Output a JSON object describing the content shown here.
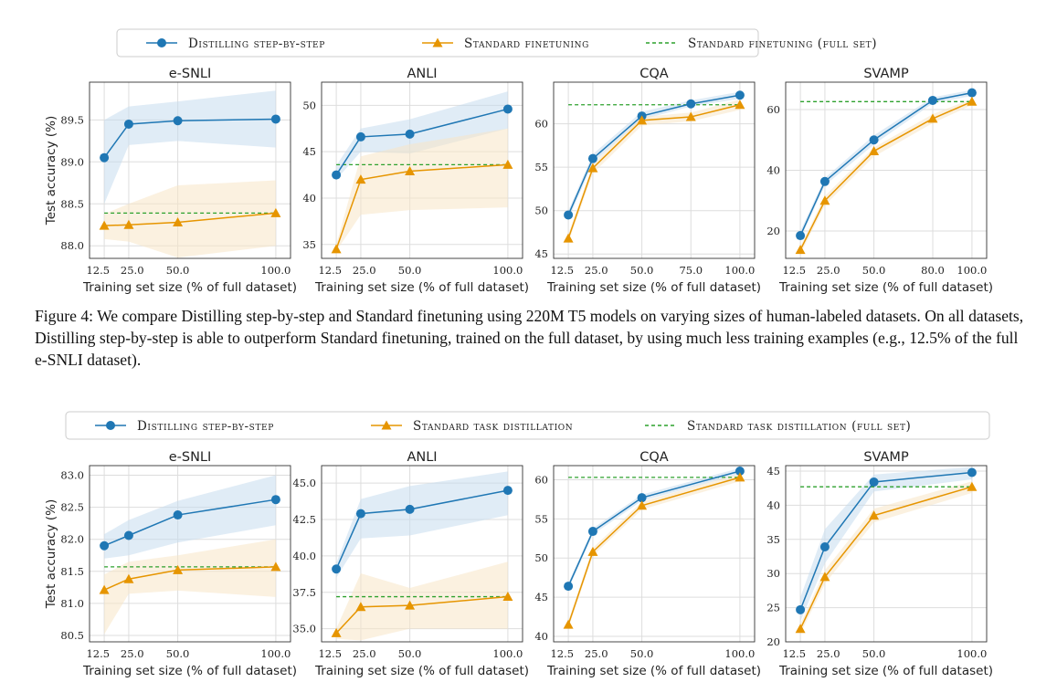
{
  "colors": {
    "distill": "#1f77b4",
    "distill_band": "#c6dcef",
    "standard": "#e69500",
    "standard_band": "#f8e5c6",
    "full_set": "#2ca02c",
    "grid": "#dddddd"
  },
  "caption": "Figure 4: We compare Distilling step-by-step and Standard finetuning using 220M T5 models on varying sizes of human-labeled datasets. On all datasets, Distilling step-by-step is able to outperform Standard finetuning, trained on the full dataset, by using much less training examples (e.g., 12.5% of the full e-SNLI dataset).",
  "chart_data": [
    {
      "type": "line",
      "legend": [
        "Distilling step-by-step",
        "Standard finetuning",
        "Standard finetuning (full set)"
      ],
      "legend_position": "top-center",
      "grid": true,
      "panels": [
        {
          "title": "e-SNLI",
          "ylabel": "Test accuracy (%)",
          "xlabel": "Training set size (% of full dataset)",
          "xlim": [
            5,
            107.5
          ],
          "ylim": [
            87.85,
            89.95
          ],
          "xticks": [
            12.5,
            25.0,
            50.0,
            100.0
          ],
          "xtick_labels": [
            "12.5",
            "25.0",
            "50.0",
            "100.0"
          ],
          "yticks": [
            88.0,
            88.5,
            89.0,
            89.5
          ],
          "ytick_labels": [
            "88.0",
            "88.5",
            "89.0",
            "89.5"
          ],
          "series": [
            {
              "name": "Distilling step-by-step",
              "x": [
                12.5,
                25,
                50,
                100
              ],
              "y": [
                89.05,
                89.45,
                89.49,
                89.51
              ],
              "lower": [
                88.5,
                89.2,
                89.25,
                89.17
              ],
              "upper": [
                89.5,
                89.66,
                89.72,
                89.85
              ]
            },
            {
              "name": "Standard finetuning",
              "x": [
                12.5,
                25,
                50,
                100
              ],
              "y": [
                88.24,
                88.25,
                88.28,
                88.39
              ],
              "lower": [
                88.08,
                88.05,
                87.86,
                88.0
              ],
              "upper": [
                88.38,
                88.5,
                88.72,
                88.78
              ]
            }
          ],
          "full_set": 88.39
        },
        {
          "title": "ANLI",
          "ylabel": "",
          "xlabel": "Training set size (% of full dataset)",
          "xlim": [
            5,
            107.5
          ],
          "ylim": [
            33.5,
            52.5
          ],
          "xticks": [
            12.5,
            25.0,
            50.0,
            100.0
          ],
          "xtick_labels": [
            "12.5",
            "25.0",
            "50.0",
            "100.0"
          ],
          "yticks": [
            35,
            40,
            45,
            50
          ],
          "ytick_labels": [
            "35",
            "40",
            "45",
            "50"
          ],
          "series": [
            {
              "name": "Distilling step-by-step",
              "x": [
                12.5,
                25,
                50,
                100
              ],
              "y": [
                42.5,
                46.6,
                46.9,
                49.6
              ],
              "lower": [
                42.0,
                45.0,
                44.8,
                47.5
              ],
              "upper": [
                43.5,
                47.5,
                48.5,
                51.5
              ]
            },
            {
              "name": "Standard finetuning",
              "x": [
                12.5,
                25,
                50,
                100
              ],
              "y": [
                34.5,
                42.0,
                42.9,
                43.6
              ],
              "lower": [
                34.3,
                38.2,
                38.7,
                39.0
              ],
              "upper": [
                35.0,
                44.5,
                45.8,
                47.5
              ]
            }
          ],
          "full_set": 43.6
        },
        {
          "title": "CQA",
          "ylabel": "",
          "xlabel": "Training set size (% of full dataset)",
          "xlim": [
            5,
            107.5
          ],
          "ylim": [
            44.5,
            64.8
          ],
          "xticks": [
            12.5,
            25.0,
            50.0,
            75.0,
            100.0
          ],
          "xtick_labels": [
            "12.5",
            "25.0",
            "50.0",
            "75.0",
            "100.0"
          ],
          "yticks": [
            45,
            50,
            55,
            60
          ],
          "ytick_labels": [
            "45",
            "50",
            "55",
            "60"
          ],
          "series": [
            {
              "name": "Distilling step-by-step",
              "x": [
                12.5,
                25,
                50,
                75,
                100
              ],
              "y": [
                49.5,
                56.0,
                60.9,
                62.3,
                63.3
              ],
              "lower": [
                49.0,
                55.5,
                60.5,
                62.0,
                62.9
              ],
              "upper": [
                50.0,
                56.5,
                61.4,
                62.7,
                63.7
              ]
            },
            {
              "name": "Standard finetuning",
              "x": [
                12.5,
                25,
                50,
                75,
                100
              ],
              "y": [
                46.8,
                54.9,
                60.4,
                60.8,
                62.2
              ],
              "lower": [
                46.3,
                54.3,
                59.8,
                60.3,
                61.6
              ],
              "upper": [
                47.3,
                55.4,
                60.8,
                61.3,
                62.8
              ]
            }
          ],
          "full_set": 62.2
        },
        {
          "title": "SVAMP",
          "ylabel": "",
          "xlabel": "Training set size (% of full dataset)",
          "xlim": [
            5,
            107.5
          ],
          "ylim": [
            11,
            69
          ],
          "xticks": [
            12.5,
            25.0,
            50.0,
            80.0,
            100.0
          ],
          "xtick_labels": [
            "12.5",
            "25.0",
            "50.0",
            "80.0",
            "100.0"
          ],
          "yticks": [
            20,
            40,
            60
          ],
          "ytick_labels": [
            "20",
            "40",
            "60"
          ],
          "series": [
            {
              "name": "Distilling step-by-step",
              "x": [
                12.5,
                25,
                50,
                80,
                100
              ],
              "y": [
                18.5,
                36.3,
                50.0,
                63.0,
                65.5
              ],
              "lower": [
                17.5,
                35.0,
                48.5,
                62.0,
                64.5
              ],
              "upper": [
                20.0,
                37.5,
                51.5,
                64.0,
                66.5
              ]
            },
            {
              "name": "Standard finetuning",
              "x": [
                12.5,
                25,
                50,
                80,
                100
              ],
              "y": [
                13.8,
                30.0,
                46.3,
                57.0,
                62.6
              ],
              "lower": [
                12.5,
                28.5,
                44.5,
                55.5,
                61.5
              ],
              "upper": [
                15.0,
                31.5,
                47.5,
                58.5,
                63.5
              ]
            }
          ],
          "full_set": 62.6
        }
      ]
    },
    {
      "type": "line",
      "legend": [
        "Distilling step-by-step",
        "Standard task distillation",
        "Standard task distillation (full set)"
      ],
      "legend_position": "top-center",
      "grid": true,
      "panels": [
        {
          "title": "e-SNLI",
          "ylabel": "Test accuracy (%)",
          "xlabel": "Training set size (% of full dataset)",
          "xlim": [
            5,
            107.5
          ],
          "ylim": [
            80.4,
            83.15
          ],
          "xticks": [
            12.5,
            25.0,
            50.0,
            100.0
          ],
          "xtick_labels": [
            "12.5",
            "25.0",
            "50.0",
            "100.0"
          ],
          "yticks": [
            80.5,
            81.0,
            81.5,
            82.0,
            82.5,
            83.0
          ],
          "ytick_labels": [
            "80.5",
            "81.0",
            "81.5",
            "82.0",
            "82.5",
            "83.0"
          ],
          "series": [
            {
              "name": "Distilling step-by-step",
              "x": [
                12.5,
                25,
                50,
                100
              ],
              "y": [
                81.9,
                82.06,
                82.38,
                82.62
              ],
              "lower": [
                81.7,
                81.75,
                81.95,
                82.22
              ],
              "upper": [
                82.08,
                82.3,
                82.6,
                83.0
              ]
            },
            {
              "name": "Standard task distillation",
              "x": [
                12.5,
                25,
                50,
                100
              ],
              "y": [
                81.21,
                81.38,
                81.52,
                81.57
              ],
              "lower": [
                80.52,
                81.15,
                81.2,
                81.1
              ],
              "upper": [
                81.45,
                81.65,
                81.75,
                82.0
              ]
            }
          ],
          "full_set": 81.57
        },
        {
          "title": "ANLI",
          "ylabel": "",
          "xlabel": "Training set size (% of full dataset)",
          "xlim": [
            5,
            107.5
          ],
          "ylim": [
            34.1,
            46.2
          ],
          "xticks": [
            12.5,
            25.0,
            50.0,
            100.0
          ],
          "xtick_labels": [
            "12.5",
            "25.0",
            "50.0",
            "100.0"
          ],
          "yticks": [
            35.0,
            37.5,
            40.0,
            42.5,
            45.0
          ],
          "ytick_labels": [
            "35.0",
            "37.5",
            "40.0",
            "42.5",
            "45.0"
          ],
          "series": [
            {
              "name": "Distilling step-by-step",
              "x": [
                12.5,
                25,
                50,
                100
              ],
              "y": [
                39.1,
                42.9,
                43.2,
                44.5
              ],
              "lower": [
                38.5,
                41.2,
                41.4,
                42.8
              ],
              "upper": [
                39.5,
                43.9,
                44.8,
                45.8
              ]
            },
            {
              "name": "Standard task distillation",
              "x": [
                12.5,
                25,
                50,
                100
              ],
              "y": [
                34.7,
                36.5,
                36.6,
                37.2
              ],
              "lower": [
                34.3,
                34.2,
                35.0,
                35.0
              ],
              "upper": [
                35.0,
                38.8,
                37.8,
                39.6
              ]
            }
          ],
          "full_set": 37.2
        },
        {
          "title": "CQA",
          "ylabel": "",
          "xlabel": "Training set size (% of full dataset)",
          "xlim": [
            5,
            107.5
          ],
          "ylim": [
            39.3,
            61.8
          ],
          "xticks": [
            12.5,
            25.0,
            50.0,
            100.0
          ],
          "xtick_labels": [
            "12.5",
            "25.0",
            "50.0",
            "100.0"
          ],
          "yticks": [
            40,
            45,
            50,
            55,
            60
          ],
          "ytick_labels": [
            "40",
            "45",
            "50",
            "55",
            "60"
          ],
          "series": [
            {
              "name": "Distilling step-by-step",
              "x": [
                12.5,
                25,
                50,
                100
              ],
              "y": [
                46.4,
                53.4,
                57.7,
                61.1
              ],
              "lower": [
                46.0,
                53.0,
                57.3,
                60.7
              ],
              "upper": [
                46.8,
                53.8,
                58.1,
                61.5
              ]
            },
            {
              "name": "Standard task distillation",
              "x": [
                12.5,
                25,
                50,
                100
              ],
              "y": [
                41.5,
                50.8,
                56.7,
                60.3
              ],
              "lower": [
                41.0,
                50.3,
                56.2,
                59.8
              ],
              "upper": [
                42.0,
                51.3,
                57.2,
                60.8
              ]
            }
          ],
          "full_set": 60.3
        },
        {
          "title": "SVAMP",
          "ylabel": "",
          "xlabel": "Training set size (% of full dataset)",
          "xlim": [
            5,
            107.5
          ],
          "ylim": [
            20.0,
            45.8
          ],
          "xticks": [
            12.5,
            25.0,
            50.0,
            100.0
          ],
          "xtick_labels": [
            "12.5",
            "25.0",
            "50.0",
            "100.0"
          ],
          "yticks": [
            20,
            25,
            30,
            35,
            40,
            45
          ],
          "ytick_labels": [
            "20",
            "25",
            "30",
            "35",
            "40",
            "45"
          ],
          "series": [
            {
              "name": "Distilling step-by-step",
              "x": [
                12.5,
                25,
                50,
                100
              ],
              "y": [
                24.7,
                33.9,
                43.4,
                44.8
              ],
              "lower": [
                23.0,
                31.5,
                42.0,
                43.8
              ],
              "upper": [
                26.5,
                36.5,
                44.5,
                45.6
              ]
            },
            {
              "name": "Standard task distillation",
              "x": [
                12.5,
                25,
                50,
                100
              ],
              "y": [
                21.9,
                29.5,
                38.5,
                42.7
              ],
              "lower": [
                21.2,
                28.5,
                37.5,
                41.8
              ],
              "upper": [
                22.6,
                30.5,
                39.5,
                43.5
              ]
            }
          ],
          "full_set": 42.7
        }
      ]
    }
  ]
}
